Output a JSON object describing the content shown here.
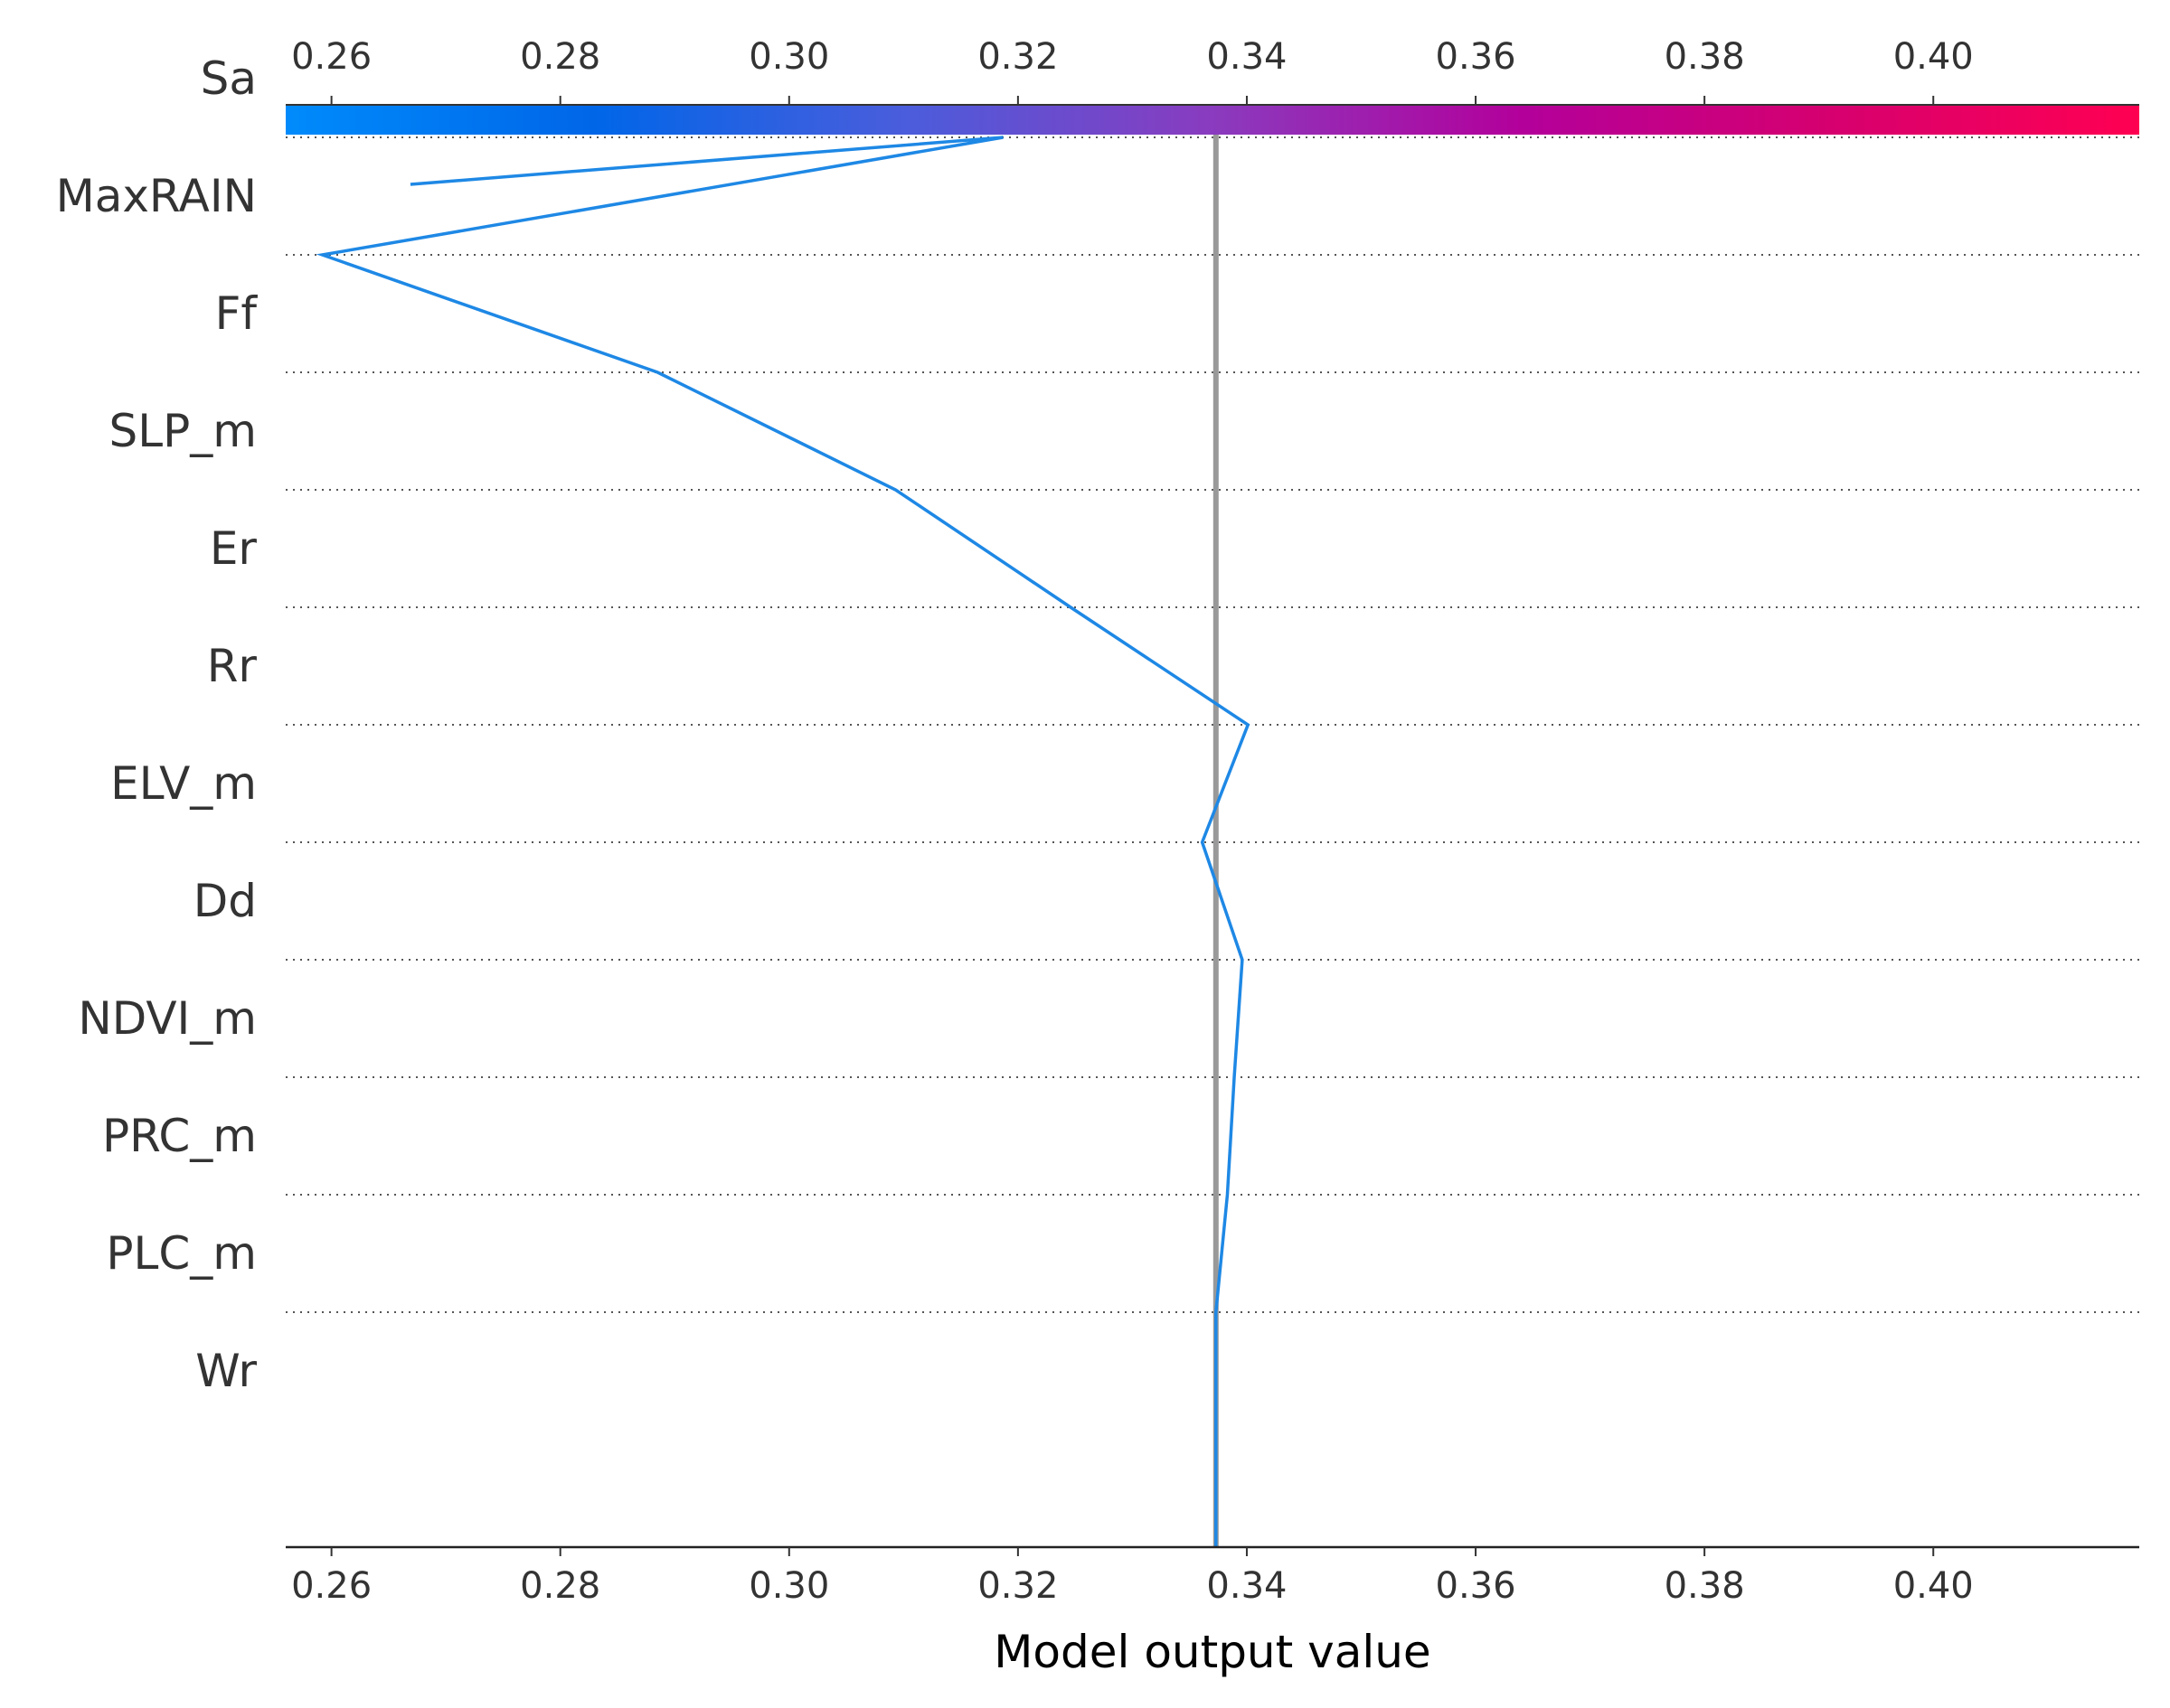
{
  "chart_data": {
    "type": "line",
    "plot_kind": "decision-plot",
    "xlabel": "Model output value",
    "xlim": [
      0.256,
      0.418
    ],
    "x_ticks": [
      0.26,
      0.28,
      0.3,
      0.32,
      0.34,
      0.36,
      0.38,
      0.4
    ],
    "x_tick_labels": [
      "0.26",
      "0.28",
      "0.30",
      "0.32",
      "0.34",
      "0.36",
      "0.38",
      "0.40"
    ],
    "base_value": 0.3373,
    "features_top_to_bottom": [
      "Sa",
      "MaxRAIN",
      "Ff",
      "SLP_m",
      "Er",
      "Rr",
      "ELV_m",
      "Dd",
      "NDVI_m",
      "PRC_m",
      "PLC_m",
      "Wr"
    ],
    "decision_path": {
      "x_top_to_bottom": [
        0.2669,
        0.3187,
        0.2592,
        0.2885,
        0.3093,
        0.3246,
        0.3401,
        0.3361,
        0.3396,
        0.3389,
        0.3383,
        0.3373
      ],
      "intermediate_point_fraction": 0.6,
      "color": "#1e88e5"
    },
    "colorbar": {
      "gradient_colors": [
        "#008bfb",
        "#0066e8",
        "#4a5ddc",
        "#8a3bbf",
        "#b3009b",
        "#d6006f",
        "#ff0052"
      ]
    },
    "base_line_color": "#999999",
    "grid": "dotted horizontal separators"
  }
}
